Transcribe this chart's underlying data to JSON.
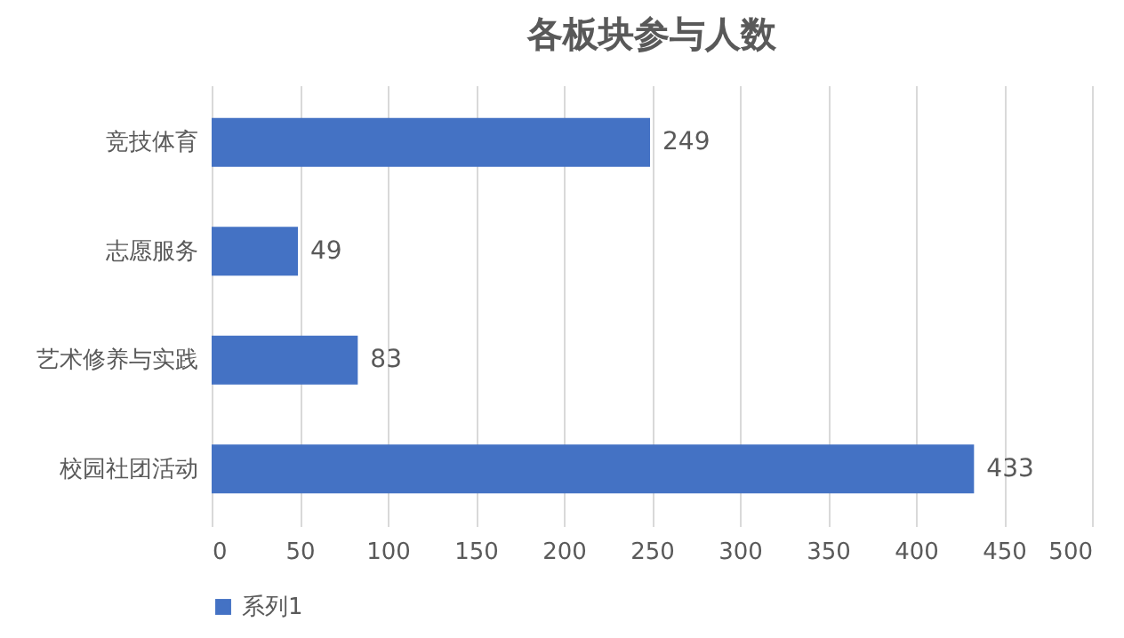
{
  "chart_data": {
    "type": "bar",
    "title": "各板块参与人数",
    "orientation": "horizontal",
    "categories": [
      "竞技体育",
      "志愿服务",
      "艺术修养与实践",
      "校园社团活动"
    ],
    "series": [
      {
        "name": "系列1",
        "color": "#4472c4",
        "values": [
          249,
          49,
          83,
          433
        ]
      }
    ],
    "xlim": [
      0,
      500
    ],
    "xticks": [
      0,
      50,
      100,
      150,
      200,
      250,
      300,
      350,
      400,
      450,
      500
    ],
    "grid": "x",
    "legend": "bottom",
    "data_labels": true
  }
}
